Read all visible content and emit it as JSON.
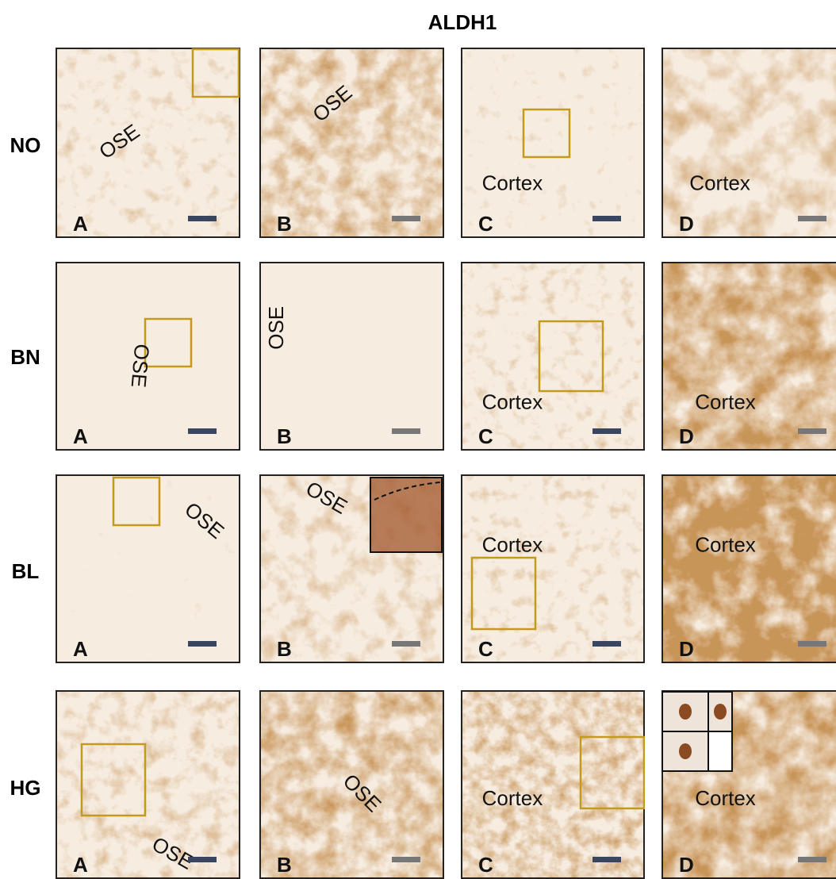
{
  "title": "ALDH1",
  "rows": [
    {
      "label": "NO",
      "panels": [
        {
          "letter": "A",
          "tissue": "OSE"
        },
        {
          "letter": "B",
          "tissue": "OSE"
        },
        {
          "letter": "C",
          "tissue": "Cortex"
        },
        {
          "letter": "D",
          "tissue": "Cortex"
        }
      ]
    },
    {
      "label": "BN",
      "panels": [
        {
          "letter": "A",
          "tissue": "OSE"
        },
        {
          "letter": "B",
          "tissue": "OSE"
        },
        {
          "letter": "C",
          "tissue": "Cortex"
        },
        {
          "letter": "D",
          "tissue": "Cortex"
        }
      ]
    },
    {
      "label": "BL",
      "panels": [
        {
          "letter": "A",
          "tissue": "OSE"
        },
        {
          "letter": "B",
          "tissue": "OSE"
        },
        {
          "letter": "C",
          "tissue": "Cortex"
        },
        {
          "letter": "D",
          "tissue": "Cortex"
        }
      ]
    },
    {
      "label": "HG",
      "panels": [
        {
          "letter": "A",
          "tissue": "OSE"
        },
        {
          "letter": "B",
          "tissue": "OSE"
        },
        {
          "letter": "C",
          "tissue": "Cortex"
        },
        {
          "letter": "D",
          "tissue": "Cortex"
        }
      ]
    }
  ]
}
